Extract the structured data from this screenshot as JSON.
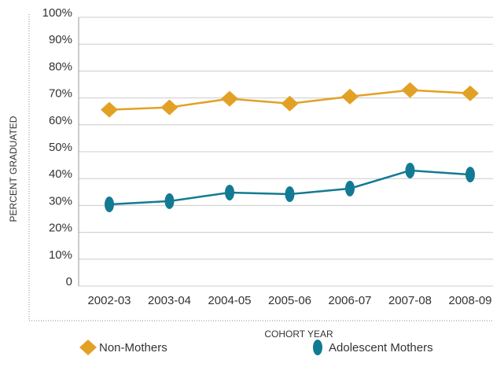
{
  "chart_data": {
    "type": "line",
    "x_label": "COHORT YEAR",
    "y_label": "PERCENT GRADUATED",
    "categories": [
      "2002-03",
      "2003-04",
      "2004-05",
      "2005-06",
      "2006-07",
      "2007-08",
      "2008-09"
    ],
    "series": [
      {
        "name": "Non-Mothers",
        "color": "#e2a125",
        "marker": "diamond",
        "values": [
          65.6,
          66.5,
          69.7,
          67.9,
          70.5,
          72.9,
          71.7
        ]
      },
      {
        "name": "Adolescent Mothers",
        "color": "#137a94",
        "marker": "ellipse",
        "values": [
          30.4,
          31.6,
          34.8,
          34.2,
          36.3,
          43.0,
          41.5
        ]
      }
    ],
    "ylim": [
      0,
      100
    ],
    "yticks": [
      0,
      {
        "value": 10,
        "label": "10%"
      },
      {
        "value": 20,
        "label": "20%"
      },
      {
        "value": 30,
        "label": "30%"
      },
      {
        "value": 40,
        "label": "40%"
      },
      {
        "value": 50,
        "label": "50%"
      },
      {
        "value": 60,
        "label": "60%"
      },
      {
        "value": 70,
        "label": "70%"
      },
      {
        "value": 80,
        "label": "80%"
      },
      {
        "value": 90,
        "label": "90%"
      },
      {
        "value": 100,
        "label": "100%"
      }
    ],
    "grid": true
  }
}
